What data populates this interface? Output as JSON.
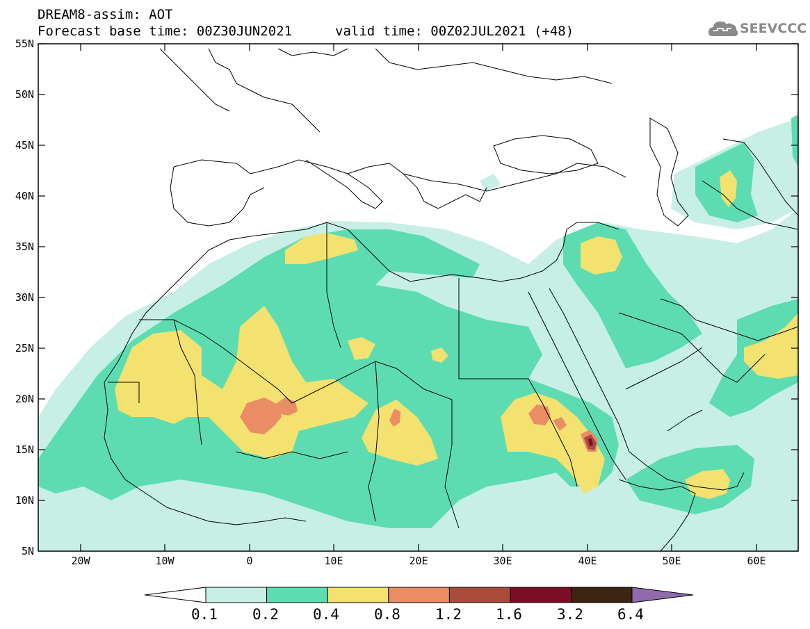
{
  "header": {
    "title_line1": "DREAM8-assim: AOT",
    "title_line2": "Forecast base time: 00Z30JUN2021",
    "valid_time": "valid time: 00Z02JUL2021 (+48)"
  },
  "logo": {
    "text": "SEEVCCC",
    "icon": "cloud-icon"
  },
  "map": {
    "lat_labels": [
      "55N",
      "50N",
      "45N",
      "40N",
      "35N",
      "30N",
      "25N",
      "20N",
      "15N",
      "10N",
      "5N"
    ],
    "lon_labels": [
      "20W",
      "10W",
      "0",
      "10E",
      "20E",
      "30E",
      "40E",
      "50E",
      "60E"
    ]
  },
  "colorbar": {
    "labels": [
      "0.1",
      "0.2",
      "0.4",
      "0.8",
      "1.2",
      "1.6",
      "3.2",
      "6.4"
    ],
    "colors": [
      "#c7efe6",
      "#5ddcb2",
      "#f3e26f",
      "#ea8d65",
      "#a94c3c",
      "#7b0e24",
      "#3d2413",
      "#8f6bad"
    ]
  }
}
